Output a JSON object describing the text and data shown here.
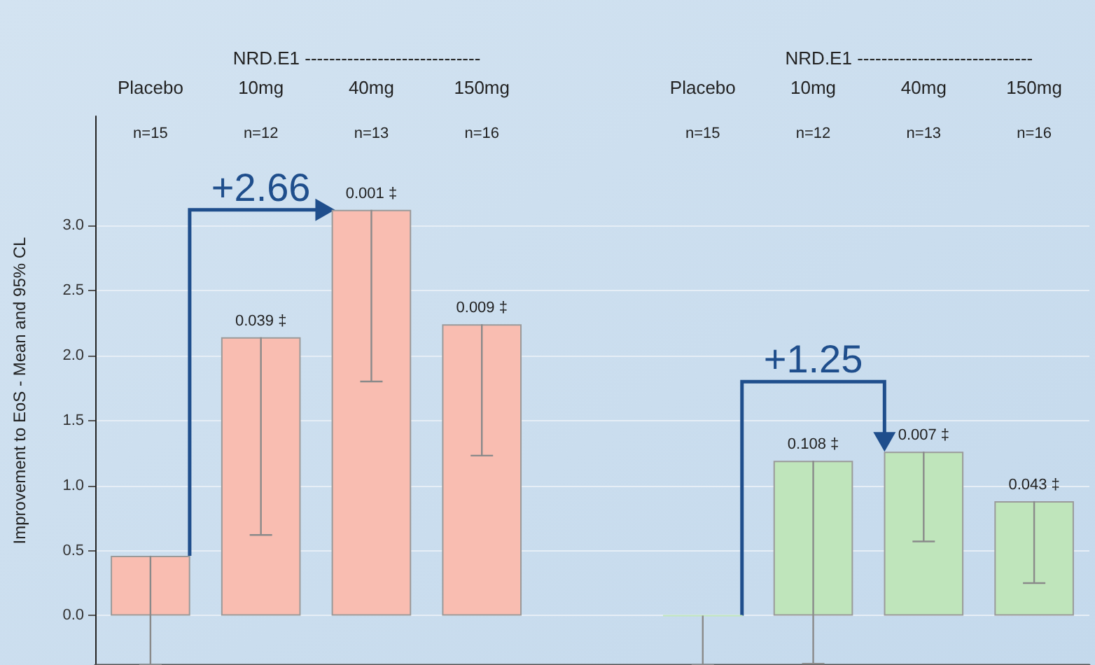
{
  "chart_data": {
    "type": "bar",
    "ylabel": "Improvement to EoS - Mean and 95% CL",
    "categories": [
      "Placebo",
      "10mg",
      "40mg",
      "150mg",
      null,
      "Placebo",
      "10mg",
      "40mg",
      "150mg"
    ],
    "values": [
      0.46,
      2.14,
      3.12,
      2.24,
      null,
      0.0,
      1.19,
      1.26,
      0.88
    ],
    "colors": [
      "#f9bdb1",
      "#f9bdb1",
      "#f9bdb1",
      "#f9bdb1",
      "#ffffff",
      "#bfe5bb",
      "#bfe5bb",
      "#bfe5bb",
      "#bfe5bb"
    ],
    "errors": [
      [
        -0.38,
        0.46
      ],
      [
        0.62,
        2.14
      ],
      [
        1.8,
        3.12
      ],
      [
        1.23,
        2.24
      ],
      null,
      [
        -0.38,
        0.0
      ],
      [
        -0.37,
        1.19
      ],
      [
        0.57,
        1.26
      ],
      [
        0.25,
        0.88
      ]
    ],
    "ylim": [
      -0.38,
      3.84
    ],
    "yticks": [
      {
        "value": 0,
        "label": "0.0"
      },
      {
        "value": 0.5,
        "label": "0.5"
      },
      {
        "value": 1,
        "label": "1.0"
      },
      {
        "value": 1.5,
        "label": "1.5"
      },
      {
        "value": 2,
        "label": "2.0"
      },
      {
        "value": 2.5,
        "label": "2.5"
      },
      {
        "value": 3,
        "label": "3.0"
      }
    ],
    "grid": "y",
    "annotations": [
      "n=15",
      "n=12",
      "n=13",
      "n=16",
      "n=15",
      "n=12",
      "n=13",
      "n=16",
      "NRD.E1 -----------------------------",
      "NRD.E1 -----------------------------",
      "0.039 ‡",
      "0.001 ‡",
      "0.009 ‡",
      "0.108 ‡",
      "0.007 ‡",
      "0.043 ‡",
      "+2.66",
      "+1.25"
    ]
  }
}
